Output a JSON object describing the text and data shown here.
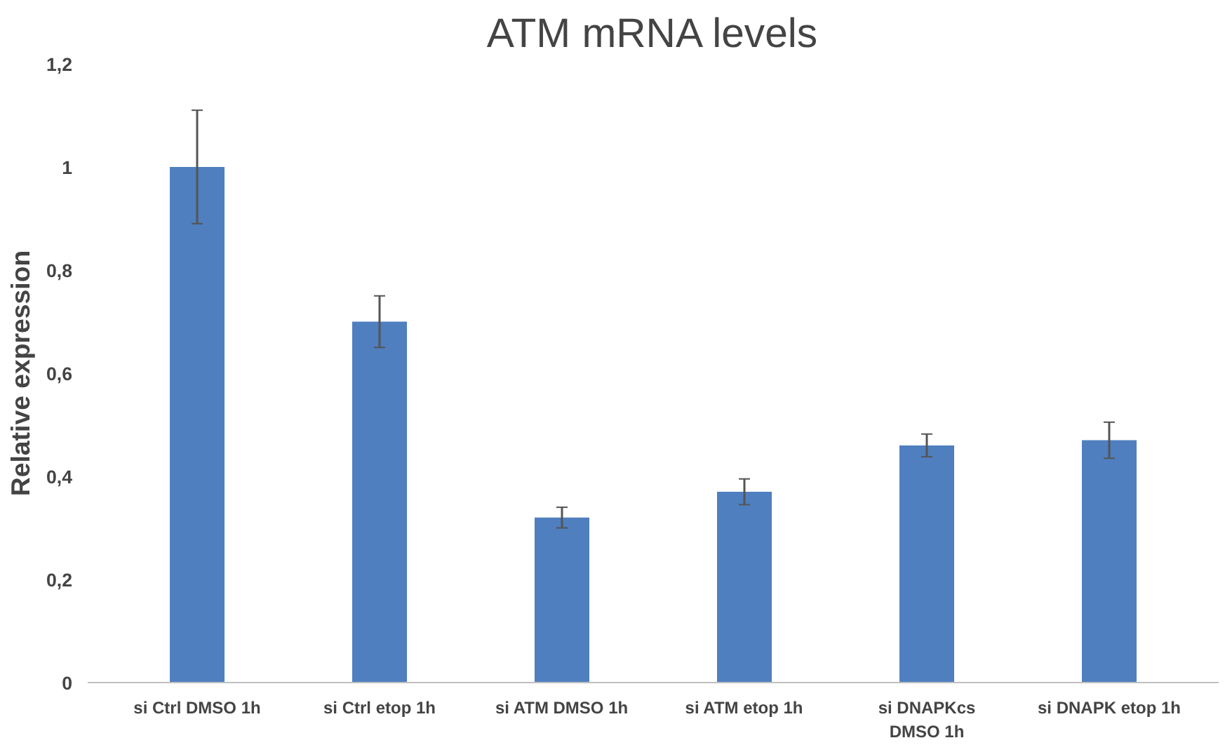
{
  "chart_data": {
    "type": "bar",
    "title": "ATM mRNA levels",
    "ylabel": "Relative expression",
    "categories": [
      "si Ctrl DMSO 1h",
      "si Ctrl etop 1h",
      "si ATM DMSO 1h",
      "si ATM etop 1h",
      "si DNAPKcs\nDMSO 1h",
      "si DNAPK etop 1h"
    ],
    "values": [
      1.0,
      0.7,
      0.32,
      0.37,
      0.46,
      0.47
    ],
    "errors": [
      0.11,
      0.05,
      0.02,
      0.025,
      0.022,
      0.035
    ],
    "color": "#4f7fbf",
    "ylim": [
      0,
      1.2
    ],
    "yticks": [
      {
        "value": 0,
        "label": "0"
      },
      {
        "value": 0.2,
        "label": "0,2"
      },
      {
        "value": 0.4,
        "label": "0,4"
      },
      {
        "value": 0.6,
        "label": "0,6"
      },
      {
        "value": 0.8,
        "label": "0,8"
      },
      {
        "value": 1,
        "label": "1"
      },
      {
        "value": 1.2,
        "label": "1,2"
      }
    ],
    "grid": false
  }
}
